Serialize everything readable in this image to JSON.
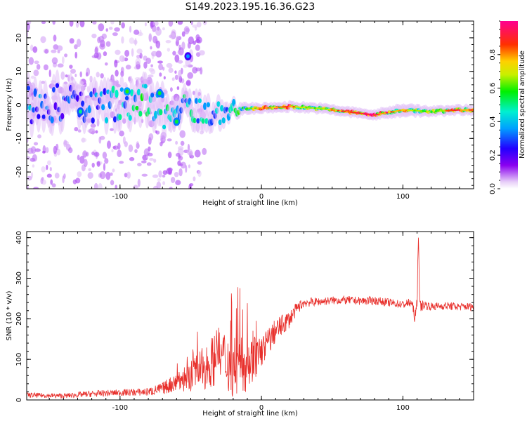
{
  "title": "S149.2023.195.16.36.G23",
  "colors": {
    "snr_line": "#e8302c",
    "axis": "#000000"
  },
  "chart_data": [
    {
      "type": "heatmap",
      "title": "S149.2023.195.16.36.G23",
      "xlabel": "Height of straight line (km)",
      "ylabel": "Frequency (Hz)",
      "xlim": [
        -166,
        150
      ],
      "ylim": [
        -25,
        25
      ],
      "xticks": [
        "-100",
        "0",
        "100"
      ],
      "xtick_values": [
        -100,
        0,
        100
      ],
      "yticks": [
        "-20",
        "-10",
        "0",
        "10",
        "20"
      ],
      "ytick_values": [
        -20,
        -10,
        0,
        10,
        20
      ],
      "colorbar": {
        "label": "Normalized spectral amplitude",
        "range": [
          0,
          1
        ],
        "ticks": [
          "0.0",
          "0.2",
          "0.4",
          "0.6",
          "0.8"
        ],
        "tick_values": [
          0.0,
          0.2,
          0.4,
          0.6,
          0.8
        ],
        "colormap": "purple-blue-cyan-green-yellow-red-pink"
      },
      "ridge": [
        {
          "x": -160,
          "f": 0.0,
          "a": 0.35,
          "spread": 9
        },
        {
          "x": -140,
          "f": 0.5,
          "a": 0.3,
          "spread": 9
        },
        {
          "x": -120,
          "f": 0.0,
          "a": 0.3,
          "spread": 8
        },
        {
          "x": -100,
          "f": 0.3,
          "a": 0.45,
          "spread": 8
        },
        {
          "x": -80,
          "f": 1.5,
          "a": 0.5,
          "spread": 8
        },
        {
          "x": -65,
          "f": -3.0,
          "a": 0.45,
          "spread": 8
        },
        {
          "x": -50,
          "f": 0.0,
          "a": 0.45,
          "spread": 7
        },
        {
          "x": -35,
          "f": -3.5,
          "a": 0.4,
          "spread": 6
        },
        {
          "x": -20,
          "f": -1.0,
          "a": 0.45,
          "spread": 3
        },
        {
          "x": 0,
          "f": -1.0,
          "a": 0.75,
          "spread": 2
        },
        {
          "x": 20,
          "f": -0.5,
          "a": 0.8,
          "spread": 2
        },
        {
          "x": 40,
          "f": -1.0,
          "a": 0.6,
          "spread": 2
        },
        {
          "x": 60,
          "f": -2.0,
          "a": 0.85,
          "spread": 2
        },
        {
          "x": 80,
          "f": -3.0,
          "a": 0.9,
          "spread": 2
        },
        {
          "x": 100,
          "f": -1.5,
          "a": 0.75,
          "spread": 3
        },
        {
          "x": 120,
          "f": -2.0,
          "a": 0.6,
          "spread": 2
        },
        {
          "x": 140,
          "f": -1.5,
          "a": 0.85,
          "spread": 2
        },
        {
          "x": 150,
          "f": -1.5,
          "a": 0.8,
          "spread": 2
        }
      ],
      "blobs": [
        {
          "x": -52,
          "f": 14.5,
          "a": 0.35
        },
        {
          "x": -95,
          "f": 4.0,
          "a": 0.6
        },
        {
          "x": -72,
          "f": 3.5,
          "a": 0.55
        },
        {
          "x": -60,
          "f": -5.0,
          "a": 0.55
        },
        {
          "x": -128,
          "f": -2.0,
          "a": 0.5
        }
      ]
    },
    {
      "type": "line",
      "xlabel": "Height of straight line (km)",
      "ylabel": "SNR (10 * v/v)",
      "xlim": [
        -166,
        150
      ],
      "ylim": [
        0,
        415
      ],
      "xticks": [
        "-100",
        "0",
        "100"
      ],
      "xtick_values": [
        -100,
        0,
        100
      ],
      "yticks": [
        "0",
        "100",
        "200",
        "300",
        "400"
      ],
      "ytick_values": [
        0,
        100,
        200,
        300,
        400
      ],
      "series": [
        {
          "color": "#e8302c",
          "x": [
            -166,
            -140,
            -120,
            -100,
            -80,
            -70,
            -60,
            -50,
            -40,
            -30,
            -20,
            -10,
            0,
            10,
            20,
            25,
            30,
            40,
            50,
            60,
            70,
            80,
            90,
            100,
            106,
            109,
            110,
            111,
            112,
            115,
            120,
            130,
            140,
            150
          ],
          "y": [
            12,
            10,
            15,
            18,
            20,
            28,
            45,
            60,
            80,
            110,
            85,
            90,
            120,
            170,
            200,
            225,
            240,
            242,
            245,
            246,
            244,
            245,
            240,
            235,
            240,
            200,
            240,
            410,
            230,
            235,
            230,
            232,
            230,
            230
          ],
          "noise": [
            6,
            6,
            8,
            8,
            10,
            15,
            25,
            40,
            55,
            70,
            80,
            70,
            40,
            30,
            22,
            15,
            12,
            10,
            10,
            10,
            10,
            10,
            10,
            10,
            12,
            20,
            30,
            10,
            15,
            12,
            10,
            10,
            10,
            10
          ]
        }
      ]
    }
  ]
}
